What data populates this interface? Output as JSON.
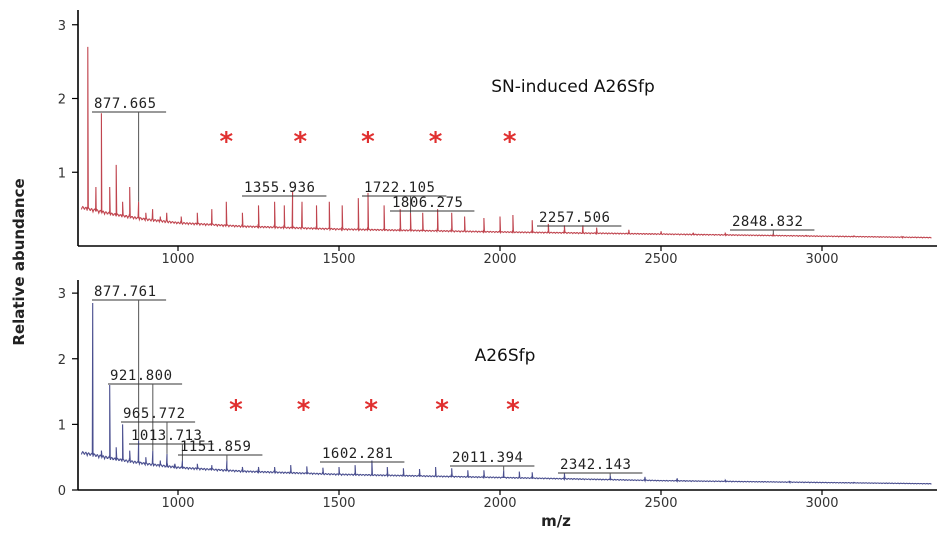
{
  "chart_data": [
    {
      "type": "line",
      "title": "SN-induced A26Sfp",
      "xlim": [
        700,
        3340
      ],
      "ylim": [
        0,
        3.2
      ],
      "x_ticks": [
        1000,
        1500,
        2000,
        2500,
        3000
      ],
      "y_ticks": [
        1,
        2,
        3
      ],
      "color": "#c0454f",
      "baseline": [
        [
          700,
          0.55
        ],
        [
          800,
          0.45
        ],
        [
          900,
          0.38
        ],
        [
          1000,
          0.33
        ],
        [
          1200,
          0.28
        ],
        [
          1500,
          0.24
        ],
        [
          2000,
          0.2
        ],
        [
          2500,
          0.17
        ],
        [
          3000,
          0.14
        ],
        [
          3340,
          0.12
        ]
      ],
      "peaks": [
        [
          720,
          2.7
        ],
        [
          745,
          0.8
        ],
        [
          762,
          1.8
        ],
        [
          788,
          0.8
        ],
        [
          808,
          1.1
        ],
        [
          828,
          0.6
        ],
        [
          850,
          0.8
        ],
        [
          877.665,
          0.6
        ],
        [
          900,
          0.45
        ],
        [
          921,
          0.5
        ],
        [
          945,
          0.4
        ],
        [
          965,
          0.45
        ],
        [
          1010,
          0.4
        ],
        [
          1060,
          0.45
        ],
        [
          1105,
          0.5
        ],
        [
          1150,
          0.6
        ],
        [
          1200,
          0.45
        ],
        [
          1250,
          0.55
        ],
        [
          1300,
          0.6
        ],
        [
          1330,
          0.55
        ],
        [
          1355.936,
          0.75
        ],
        [
          1385,
          0.6
        ],
        [
          1430,
          0.55
        ],
        [
          1470,
          0.6
        ],
        [
          1510,
          0.55
        ],
        [
          1560,
          0.65
        ],
        [
          1590,
          0.72
        ],
        [
          1640,
          0.55
        ],
        [
          1690,
          0.5
        ],
        [
          1722.105,
          0.45
        ],
        [
          1760,
          0.45
        ],
        [
          1806.275,
          0.5
        ],
        [
          1850,
          0.45
        ],
        [
          1890,
          0.4
        ],
        [
          1950,
          0.38
        ],
        [
          2000,
          0.4
        ],
        [
          2040,
          0.42
        ],
        [
          2100,
          0.35
        ],
        [
          2150,
          0.3
        ],
        [
          2200,
          0.28
        ],
        [
          2257.506,
          0.28
        ],
        [
          2300,
          0.25
        ],
        [
          2400,
          0.22
        ],
        [
          2500,
          0.2
        ],
        [
          2600,
          0.18
        ],
        [
          2700,
          0.17
        ],
        [
          2848.832,
          0.16
        ],
        [
          2950,
          0.14
        ],
        [
          3100,
          0.13
        ],
        [
          3250,
          0.12
        ]
      ],
      "annotations": [
        {
          "label": "877.665",
          "x": 877.665
        },
        {
          "label": "1355.936",
          "x": 1355.936
        },
        {
          "label": "1722.105",
          "x": 1722.105
        },
        {
          "label": "1806.275",
          "x": 1806.275
        },
        {
          "label": "2257.506",
          "x": 2257.506
        },
        {
          "label": "2848.832",
          "x": 2848.832
        }
      ],
      "stars": [
        1150,
        1380,
        1590,
        1800,
        2030
      ]
    },
    {
      "type": "line",
      "title": "A26Sfp",
      "xlim": [
        700,
        3340
      ],
      "ylim": [
        0,
        3.2
      ],
      "x_ticks": [
        1000,
        1500,
        2000,
        2500,
        3000
      ],
      "y_ticks": [
        0,
        1,
        2,
        3
      ],
      "color": "#4a4f8f",
      "baseline": [
        [
          700,
          0.6
        ],
        [
          800,
          0.5
        ],
        [
          900,
          0.42
        ],
        [
          1000,
          0.36
        ],
        [
          1200,
          0.3
        ],
        [
          1500,
          0.25
        ],
        [
          2000,
          0.2
        ],
        [
          2500,
          0.15
        ],
        [
          3000,
          0.12
        ],
        [
          3340,
          0.1
        ]
      ],
      "peaks": [
        [
          735,
          2.85
        ],
        [
          762,
          0.6
        ],
        [
          788,
          1.6
        ],
        [
          808,
          0.65
        ],
        [
          828,
          1.0
        ],
        [
          850,
          0.6
        ],
        [
          877.761,
          0.75
        ],
        [
          900,
          0.5
        ],
        [
          921.8,
          0.6
        ],
        [
          945,
          0.45
        ],
        [
          965.772,
          0.55
        ],
        [
          990,
          0.4
        ],
        [
          1013.713,
          0.45
        ],
        [
          1060,
          0.4
        ],
        [
          1105,
          0.38
        ],
        [
          1151.859,
          0.45
        ],
        [
          1200,
          0.35
        ],
        [
          1250,
          0.35
        ],
        [
          1300,
          0.35
        ],
        [
          1350,
          0.38
        ],
        [
          1400,
          0.36
        ],
        [
          1450,
          0.34
        ],
        [
          1500,
          0.35
        ],
        [
          1550,
          0.38
        ],
        [
          1602.281,
          0.45
        ],
        [
          1650,
          0.35
        ],
        [
          1700,
          0.33
        ],
        [
          1750,
          0.32
        ],
        [
          1800,
          0.35
        ],
        [
          1850,
          0.33
        ],
        [
          1900,
          0.3
        ],
        [
          1950,
          0.3
        ],
        [
          2011.394,
          0.3
        ],
        [
          2060,
          0.28
        ],
        [
          2100,
          0.27
        ],
        [
          2200,
          0.25
        ],
        [
          2342.143,
          0.22
        ],
        [
          2450,
          0.2
        ],
        [
          2550,
          0.18
        ],
        [
          2700,
          0.15
        ],
        [
          2900,
          0.13
        ],
        [
          3100,
          0.11
        ]
      ],
      "annotations": [
        {
          "label": "877.761",
          "x": 877.761
        },
        {
          "label": "921.800",
          "x": 921.8
        },
        {
          "label": "965.772",
          "x": 965.772
        },
        {
          "label": "1013.713",
          "x": 1013.713
        },
        {
          "label": "1151.859",
          "x": 1151.859
        },
        {
          "label": "1602.281",
          "x": 1602.281
        },
        {
          "label": "2011.394",
          "x": 2011.394
        },
        {
          "label": "2342.143",
          "x": 2342.143
        }
      ],
      "stars": [
        1180,
        1390,
        1600,
        1820,
        2040
      ]
    }
  ],
  "axes": {
    "ylabel": "Relative abundance",
    "xlabel": "m/z"
  },
  "colors": {
    "star": "#e03030"
  },
  "star_glyph": "*"
}
